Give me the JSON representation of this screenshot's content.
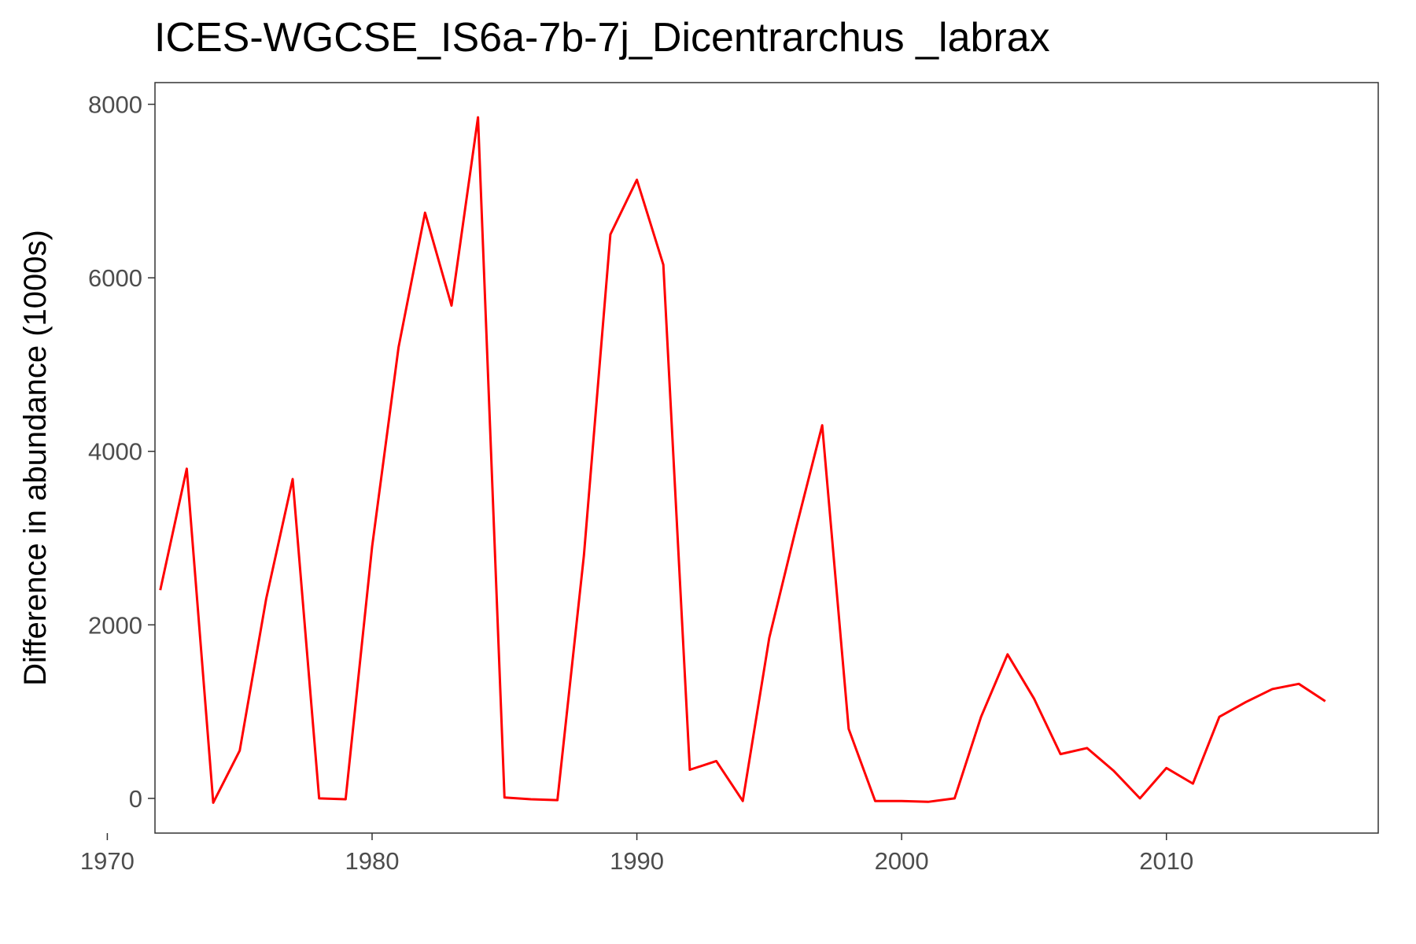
{
  "chart_data": {
    "type": "line",
    "title": "ICES-WGCSE_IS6a-7b-7j_Dicentrarchus _labrax",
    "xlabel": "",
    "ylabel": "Difference in abundance (1000s)",
    "xlim": [
      1971.8,
      2018
    ],
    "ylim": [
      -400,
      8250
    ],
    "x_ticks": [
      1970,
      1980,
      1990,
      2000,
      2010
    ],
    "y_ticks": [
      0,
      2000,
      4000,
      6000,
      8000
    ],
    "grid": false,
    "line_color": "#ff0000",
    "series": [
      {
        "x": [
          1972,
          1973,
          1974,
          1975,
          1976,
          1977,
          1978,
          1979,
          1980,
          1981,
          1982,
          1983,
          1984,
          1985,
          1986,
          1987,
          1988,
          1989,
          1990,
          1991,
          1992,
          1993,
          1994,
          1995,
          1996,
          1997,
          1998,
          1999,
          2000,
          2001,
          2002,
          2003,
          2004,
          2005,
          2006,
          2007,
          2008,
          2009,
          2010,
          2011,
          2012,
          2013,
          2014,
          2015,
          2016
        ],
        "values": [
          2400,
          3800,
          -50,
          550,
          2300,
          3680,
          0,
          -10,
          2900,
          5200,
          6750,
          5680,
          7850,
          10,
          -10,
          -20,
          2800,
          6500,
          7130,
          6150,
          330,
          430,
          -30,
          1850,
          3100,
          4300,
          800,
          -30,
          -30,
          -40,
          0,
          940,
          1660,
          1150,
          510,
          580,
          320,
          0,
          350,
          170,
          940,
          1110,
          1260,
          1320,
          1120
        ]
      }
    ]
  }
}
